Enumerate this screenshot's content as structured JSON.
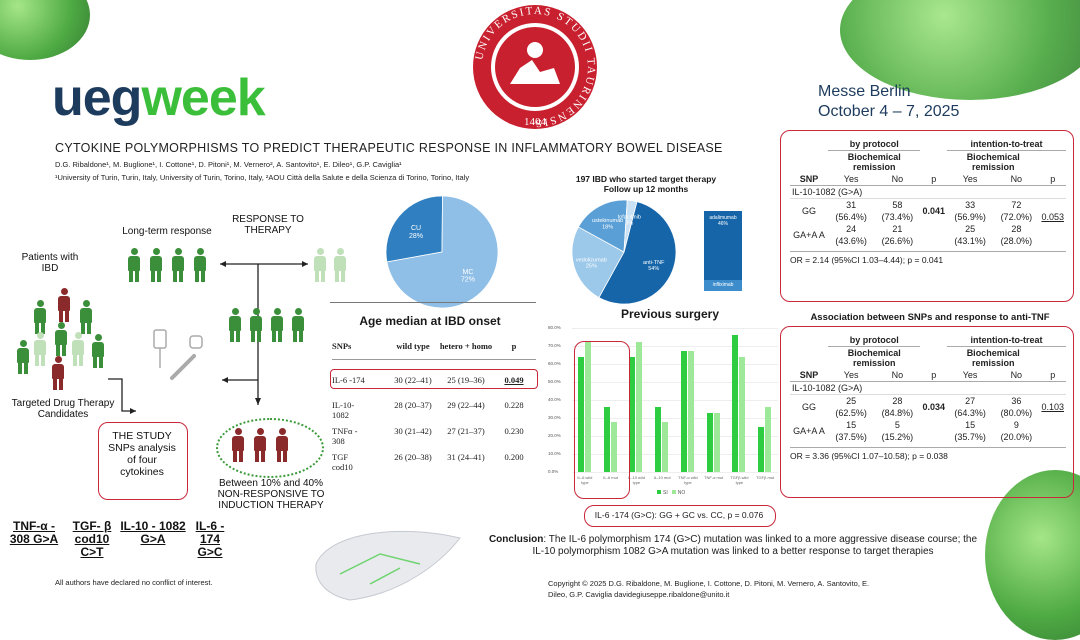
{
  "brand": {
    "ueg": "ueg",
    "week": "week"
  },
  "university_seal": {
    "ring_text": "UNIVERSITAS STUDII TAURINENSIS",
    "year": "1404"
  },
  "conference": {
    "venue": "Messe Berlin",
    "dates": "October 4 – 7, 2025"
  },
  "title": "CYTOKINE POLYMORPHISMS TO PREDICT THERAPEUTIC RESPONSE IN INFLAMMATORY BOWEL DISEASE",
  "authors": "D.G. Ribaldone¹, M. Buglione¹, I. Cottone¹, D. Pitoni¹, M. Vernero², A. Santovito¹, E. Dileo¹, G.P. Caviglia¹",
  "affiliations": "¹University of Turin, Turin, Italy, University of Turin, Torino, Italy, ²AOU Città della Salute e della Scienza di Torino, Torino, Italy",
  "flow": {
    "long_term": "Long-term response",
    "response": "RESPONSE TO THERAPY",
    "patients": "Patients with IBD",
    "candidates": "Targeted Drug Therapy Candidates",
    "study": "THE STUDY SNPs analysis of four cytokines",
    "nonresponsive": "Between 10% and 40% NON-RESPONSIVE TO INDUCTION THERAPY"
  },
  "genes": [
    "TNF-α - 308 G>A",
    "TGF- β cod10 C>T",
    "IL-10 - 1082 G>A",
    "IL-6 - 174 G>C"
  ],
  "disclosure": "All authors have declared no conflict of interest.",
  "pie1": {
    "slices": [
      {
        "label": "CU",
        "pct": "28%",
        "value": 28,
        "color": "#2f7fc1"
      },
      {
        "label": "MC",
        "pct": "72%",
        "value": 72,
        "color": "#8fbfe6"
      }
    ]
  },
  "age_table": {
    "title": "Age median at IBD onset",
    "headers": [
      "SNPs",
      "wild type",
      "hetero + homo",
      "p"
    ],
    "rows": [
      [
        "IL-6 -174",
        "30 (22–41)",
        "25 (19–36)",
        "0.049"
      ],
      [
        "IL-10-1082",
        "28 (20–37)",
        "29 (22–44)",
        "0.228"
      ],
      [
        "TNFα - 308",
        "30 (21–42)",
        "27 (21–37)",
        "0.230"
      ],
      [
        "TGF cod10",
        "26 (20–38)",
        "31 (24–41)",
        "0.200"
      ]
    ]
  },
  "pie2": {
    "title": "197 IBD who started target therapy",
    "subtitle": "Follow up 12 months",
    "slices": [
      {
        "label": "anti-TNF",
        "pct": "54%",
        "value": 54,
        "color": "#1565a8"
      },
      {
        "label": "vedolizumab",
        "pct": "25%",
        "value": 25,
        "color": "#9cc8ea"
      },
      {
        "label": "ustekinumab",
        "pct": "18%",
        "value": 18,
        "color": "#5a9fd6"
      },
      {
        "label": "tofacitinib",
        "pct": "3%",
        "value": 3,
        "color": "#c9e1f4"
      }
    ],
    "breakdown": [
      {
        "label": "adalimumab",
        "pct": "46%"
      },
      {
        "label": "infliximab",
        "pct": ""
      }
    ]
  },
  "chart_data": {
    "type": "bar",
    "title": "Previous surgery",
    "categories": [
      "IL-6 wild type",
      "IL-6 mut",
      "IL-10 wild type",
      "IL-10 mut",
      "TNF-α wild type",
      "TNF-α mut",
      "TGFβ wild type",
      "TGFβ mut"
    ],
    "series": [
      {
        "name": "SI",
        "values": [
          64,
          36,
          64,
          36,
          67,
          33,
          76,
          25
        ],
        "color": "#2ecc40"
      },
      {
        "name": "NO",
        "values": [
          72,
          28,
          72,
          28,
          67,
          33,
          64,
          36
        ],
        "color": "#9ee89a"
      }
    ],
    "ylim": [
      0,
      80
    ],
    "yticks": [
      "0.0%",
      "10.0%",
      "20.0%",
      "30.0%",
      "40.0%",
      "50.0%",
      "60.0%",
      "70.0%",
      "80.0%"
    ],
    "legend": "bottom"
  },
  "surgery_note": "IL-6 -174 (G>C): GG + GC vs. CC, p = 0.076",
  "table1": {
    "groups": [
      "by protocol",
      "intention-to-treat"
    ],
    "sub": [
      "Biochemical remission",
      "Biochemical remission"
    ],
    "cols": [
      "SNP",
      "Yes",
      "No",
      "p",
      "Yes",
      "No",
      "p"
    ],
    "snp": "IL-10-1082 (G>A)",
    "rows": [
      {
        "g": "GG",
        "a": "31",
        "b": "58",
        "c": "33",
        "d": "72",
        "pa": "(56.4%)",
        "pb": "(73.4%)",
        "pc": "(56.9%)",
        "pd": "(72.0%)",
        "p1": "0.041",
        "p2": "0.053"
      },
      {
        "g": "GA+A A",
        "a": "24",
        "b": "21",
        "c": "25",
        "d": "28",
        "pa": "(43.6%)",
        "pb": "(26.6%)",
        "pc": "(43.1%)",
        "pd": "(28.0%)"
      }
    ],
    "or": "OR = 2.14 (95%CI 1.03–4.44); p = 0.041"
  },
  "table2": {
    "heading": "Association between SNPs and response to anti-TNF",
    "groups": [
      "by protocol",
      "intention-to-treat"
    ],
    "sub": [
      "Biochemical remission",
      "Biochemical remission"
    ],
    "cols": [
      "SNP",
      "Yes",
      "No",
      "p",
      "Yes",
      "No",
      "p"
    ],
    "snp": "IL-10-1082 (G>A)",
    "rows": [
      {
        "g": "GG",
        "a": "25",
        "b": "28",
        "c": "27",
        "d": "36",
        "pa": "(62.5%)",
        "pb": "(84.8%)",
        "pc": "(64.3%)",
        "pd": "(80.0%)",
        "p1": "0.034",
        "p2": "0.103"
      },
      {
        "g": "GA+A A",
        "a": "15",
        "b": "5",
        "c": "15",
        "d": "9",
        "pa": "(37.5%)",
        "pb": "(15.2%)",
        "pc": "(35.7%)",
        "pd": "(20.0%)"
      }
    ],
    "or": "OR = 3.36 (95%CI 1.07–10.58); p = 0.038"
  },
  "conclusion": {
    "label": "Conclusion",
    "text": ": The IL-6 polymorphism 174 (G>C) mutation was linked to a more aggressive disease course; the IL-10 polymorphism 1082 G>A mutation was linked to a better response to target therapies"
  },
  "copyright": "Copyright © 2025 D.G. Ribaldone, M. Buglione, I. Cottone, D. Pitoni, M. Vernero, A. Santovito, E. Dileo, G.P. Caviglia davidegiuseppe.ribaldone@unito.it"
}
